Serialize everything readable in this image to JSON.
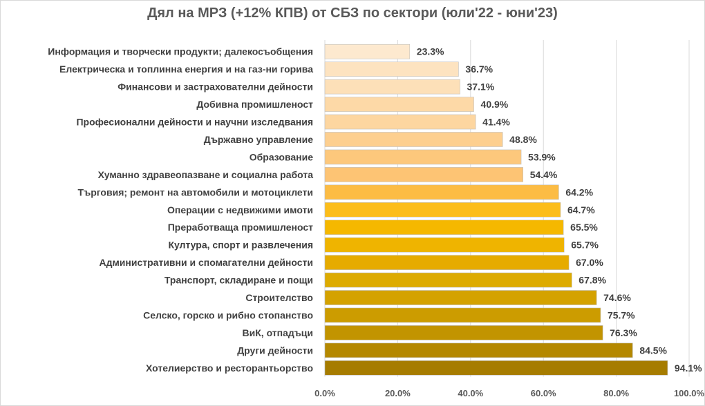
{
  "chart_data": {
    "type": "bar",
    "orientation": "horizontal",
    "title": "Дял на МРЗ (+12% КПВ) от СБЗ по сектори (юли'22 - юни'23)",
    "categories": [
      "Информация и творчески продукти; далекосъобщения",
      "Електрическа и топлинна енергия и на газ-ни горива",
      "Финансови и застрахователни дейности",
      "Добивна промишленост",
      "Професионални дейности и научни изследвания",
      "Държавно управление",
      "Образование",
      "Хуманно здравеопазване и социална работа",
      "Търговия; ремонт на автомобили и мотоциклети",
      "Операции с недвижими имоти",
      "Преработваща промишленост",
      "Култура, спорт и развлечения",
      "Административни и спомагателни дейности",
      "Транспорт, складиране и пощи",
      "Строителство",
      "Селско, горско и рибно стопанство",
      "ВиК, отпадъци",
      "Други дейности",
      "Хотелиерство и ресторантьорство"
    ],
    "values": [
      23.3,
      36.7,
      37.1,
      40.9,
      41.4,
      48.8,
      53.9,
      54.4,
      64.2,
      64.7,
      65.5,
      65.7,
      67.0,
      67.8,
      74.6,
      75.7,
      76.3,
      84.5,
      94.1
    ],
    "value_labels": [
      "23.3%",
      "36.7%",
      "37.1%",
      "40.9%",
      "41.4%",
      "48.8%",
      "53.9%",
      "54.4%",
      "64.2%",
      "64.7%",
      "65.5%",
      "65.7%",
      "67.0%",
      "67.8%",
      "74.6%",
      "75.7%",
      "76.3%",
      "84.5%",
      "94.1%"
    ],
    "bar_colors": [
      "#fde9cf",
      "#fde3c0",
      "#fde0b8",
      "#fdd9a7",
      "#fdd6a0",
      "#fdcf8f",
      "#fdc87c",
      "#fdc474",
      "#fcbc44",
      "#fcbd1a",
      "#f5b800",
      "#efb400",
      "#e6ab00",
      "#ddab00",
      "#d4a200",
      "#cc9c00",
      "#c29400",
      "#b48800",
      "#a67c00"
    ],
    "xlim": [
      0,
      100
    ],
    "xticks": [
      "0.0%",
      "20.0%",
      "40.0%",
      "60.0%",
      "80.0%",
      "100.0%"
    ],
    "grid": true,
    "legend": "none"
  }
}
